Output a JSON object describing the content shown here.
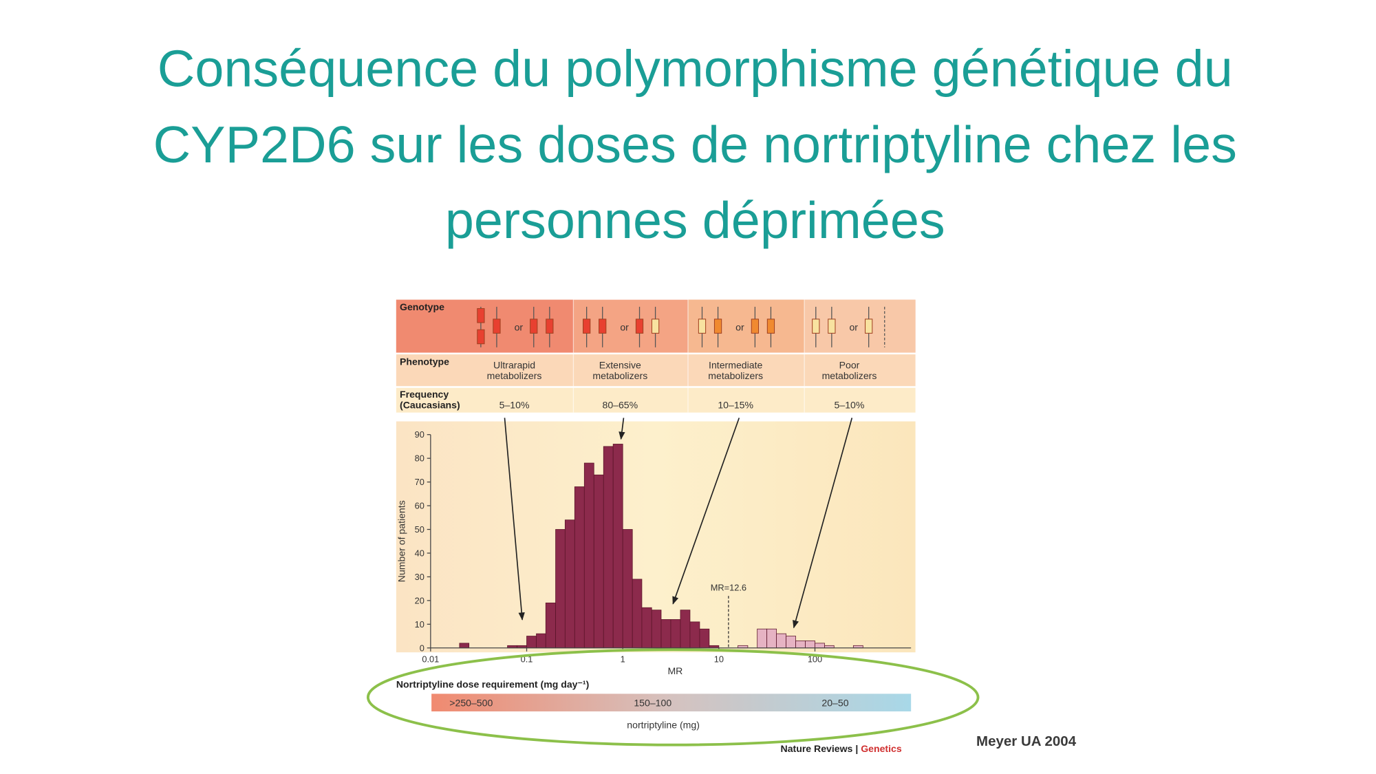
{
  "title": [
    "Conséquence du polymorphisme génétique du",
    "CYP2D6 sur les doses de nortriptyline chez les",
    "personnes déprimées"
  ],
  "figure": {
    "row_labels": {
      "genotype": "Genotype",
      "phenotype": "Phenotype",
      "frequency": [
        "Frequency",
        "(Caucasians)"
      ]
    },
    "or": "or",
    "phenotypes": [
      [
        "Ultrarapid",
        "metabolizers"
      ],
      [
        "Extensive",
        "metabolizers"
      ],
      [
        "Intermediate",
        "metabolizers"
      ],
      [
        "Poor",
        "metabolizers"
      ]
    ],
    "frequencies": [
      "5–10%",
      "80–65%",
      "10–15%",
      "5–10%"
    ],
    "dose": {
      "title": "Nortriptyline dose requirement (mg day⁻¹)",
      "ranges": [
        ">250–500",
        "150–100",
        "20–50"
      ],
      "axis_label": "nortriptyline (mg)"
    },
    "credit": {
      "publisher": "Nature Reviews",
      "separator": "|",
      "journal": "Genetics"
    }
  },
  "chart_data": {
    "type": "histogram",
    "x_label": "MR",
    "y_label": "Number of patients",
    "log_x": true,
    "xlim": [
      0.01,
      1000
    ],
    "xticks": [
      0.01,
      0.1,
      1,
      10,
      100
    ],
    "ylim": [
      0,
      90
    ],
    "yticks": [
      0,
      10,
      20,
      30,
      40,
      50,
      60,
      70,
      80,
      90
    ],
    "bins": [
      0.02,
      0.0251,
      0.0316,
      0.0398,
      0.0501,
      0.0631,
      0.0794,
      0.1,
      0.126,
      0.158,
      0.2,
      0.251,
      0.316,
      0.398,
      0.501,
      0.631,
      0.794,
      1,
      1.26,
      1.58,
      2,
      2.51,
      3.16,
      3.98,
      5.01,
      6.31,
      7.94,
      10,
      12.6,
      15.8,
      20,
      25.1,
      31.6,
      39.8,
      50.1,
      63.1,
      79.4,
      100,
      126,
      158,
      200,
      251,
      316
    ],
    "values": [
      2,
      0,
      0,
      0,
      0,
      1,
      1,
      5,
      6,
      19,
      50,
      54,
      68,
      78,
      73,
      85,
      86,
      50,
      29,
      17,
      16,
      12,
      12,
      16,
      11,
      8,
      1,
      0,
      0,
      1,
      0,
      8,
      8,
      6,
      5,
      3,
      3,
      2,
      1,
      0,
      0,
      1
    ],
    "color": "#8c2a4c",
    "highlight_color": "#e6b3c3",
    "annotation": {
      "x": 12.6,
      "label": "MR=12.6"
    }
  },
  "citation": "Meyer UA 2004"
}
